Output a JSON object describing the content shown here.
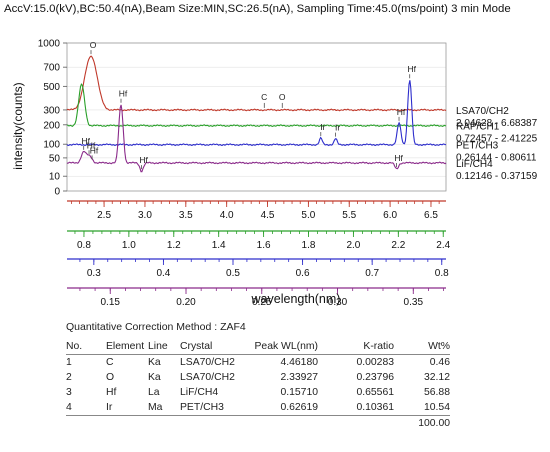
{
  "header": {
    "conditions": "AccV:15.0(kV),BC:50.4(nA),Beam Size:MIN,SC:26.5(nA), Sampling Time:45.0(ms/point) 3 min Mode"
  },
  "chart_data": {
    "type": "line",
    "ylabel": "intensity(counts)",
    "xlabel": "wavelength(nm)",
    "yscale": "sqrt",
    "ylim": [
      0,
      1000
    ],
    "y_ticks": [
      0,
      10,
      50,
      100,
      200,
      300,
      500,
      700,
      1000
    ],
    "spectra": [
      {
        "name": "LSA70/CH2",
        "range": "2.04628 - 6.68387",
        "color": "#c0392b",
        "baseline": 300,
        "peaks": [
          {
            "x": 2.34,
            "y": 830,
            "w": 0.07,
            "label": "O"
          }
        ],
        "markers": [
          {
            "x": 4.46,
            "label": "C"
          },
          {
            "x": 4.68,
            "label": "O"
          }
        ]
      },
      {
        "name": "RAP/CH1",
        "range": "0.72457 - 2.41225",
        "color": "#2aa02a",
        "baseline": 195,
        "peaks": [
          {
            "x": 0.79,
            "y": 520,
            "w": 0.012,
            "label": ""
          }
        ],
        "markers": []
      },
      {
        "name": "PET/CH3",
        "range": "0.26144 - 0.80611",
        "color": "#2d2dcc",
        "baseline": 98,
        "peaks": [
          {
            "x": 0.6262,
            "y": 128,
            "w": 0.002,
            "label": "Ir"
          },
          {
            "x": 0.6475,
            "y": 125,
            "w": 0.002,
            "label": "Ir"
          },
          {
            "x": 0.7386,
            "y": 212,
            "w": 0.0025,
            "label": "Hf"
          },
          {
            "x": 0.754,
            "y": 560,
            "w": 0.0025,
            "label": "Hf"
          }
        ],
        "markers": []
      },
      {
        "name": "LiF/CH4",
        "range": "0.12146 - 0.37159",
        "color": "#8a2a8a",
        "baseline": 36,
        "peaks": [
          {
            "x": 0.1571,
            "y": 340,
            "w": 0.0012,
            "label": "Hf"
          },
          {
            "x": 0.1325,
            "y": 70,
            "w": 0.0015,
            "label": "Hf"
          },
          {
            "x": 0.136,
            "y": 55,
            "w": 0.0015,
            "label": "Hf"
          },
          {
            "x": 0.138,
            "y": 40,
            "w": 0.0012,
            "label": "Hf"
          },
          {
            "x": 0.1707,
            "y": 18,
            "w": 0.0012,
            "label": "Hf"
          },
          {
            "x": 0.339,
            "y": 22,
            "w": 0.0012,
            "label": "Hf"
          }
        ],
        "markers": []
      }
    ],
    "x_axes": [
      {
        "color": "#c0392b",
        "range": [
          2.04628,
          6.68387
        ],
        "ticks": [
          "2.5",
          "3.0",
          "3.5",
          "4.0",
          "4.5",
          "5.0",
          "5.5",
          "6.0",
          "6.5"
        ]
      },
      {
        "color": "#2aa02a",
        "range": [
          0.72457,
          2.41225
        ],
        "ticks": [
          "0.8",
          "1.0",
          "1.2",
          "1.4",
          "1.6",
          "1.8",
          "2.0",
          "2.2",
          "2.4"
        ]
      },
      {
        "color": "#2d2dcc",
        "range": [
          0.26144,
          0.80611
        ],
        "ticks": [
          "0.3",
          "0.4",
          "0.5",
          "0.6",
          "0.7",
          "0.8"
        ]
      },
      {
        "color": "#8a2a8a",
        "range": [
          0.12146,
          0.37159
        ],
        "ticks": [
          "0.15",
          "0.20",
          "0.25",
          "0.30",
          "0.35"
        ]
      }
    ]
  },
  "table": {
    "method": "Quantitative Correction Method : ZAF4",
    "headers": [
      "No.",
      "Element",
      "Line",
      "Crystal",
      "Peak WL(nm)",
      "K-ratio",
      "Wt%"
    ],
    "rows": [
      [
        "1",
        "C",
        "Ka",
        "LSA70/CH2",
        "4.46180",
        "0.00283",
        "0.46"
      ],
      [
        "2",
        "O",
        "Ka",
        "LSA70/CH2",
        "2.33927",
        "0.23796",
        "32.12"
      ],
      [
        "3",
        "Hf",
        "La",
        "LiF/CH4",
        "0.15710",
        "0.65561",
        "56.88"
      ],
      [
        "4",
        "Ir",
        "Ma",
        "PET/CH3",
        "0.62619",
        "0.10361",
        "10.54"
      ]
    ],
    "total": "100.00"
  }
}
